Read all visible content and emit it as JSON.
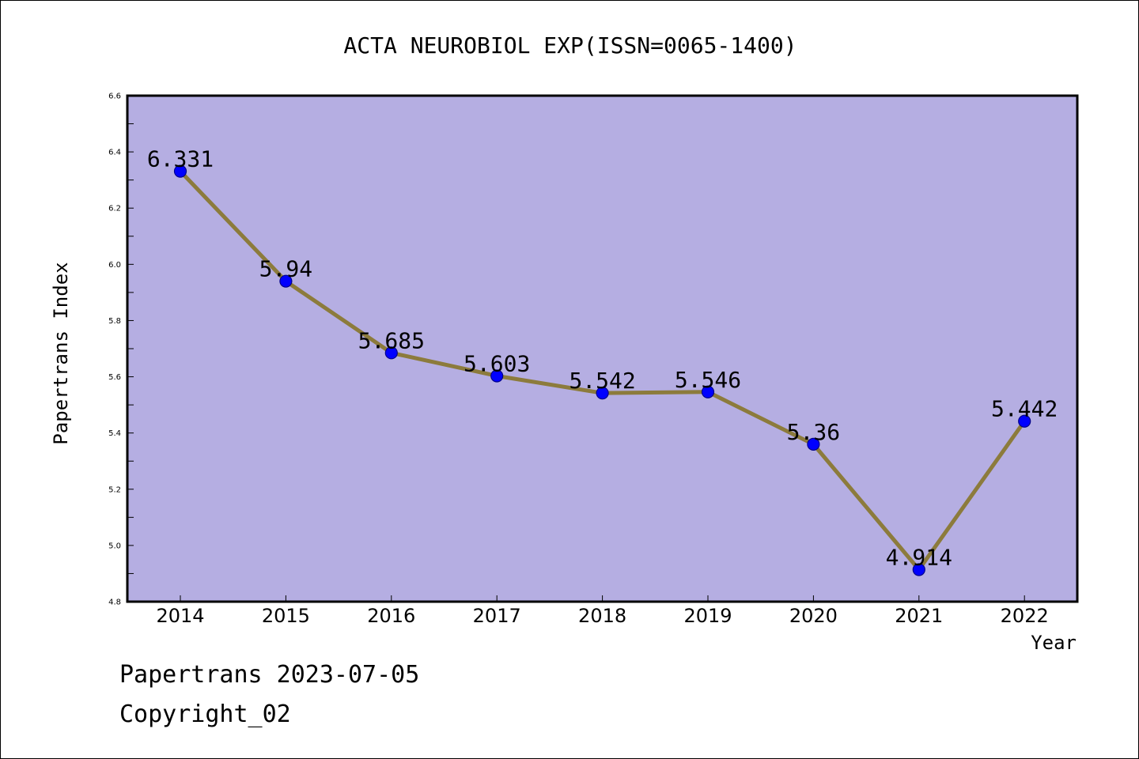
{
  "chart_data": {
    "type": "line",
    "title": "ACTA NEUROBIOL EXP(ISSN=0065-1400)",
    "xlabel": "Year",
    "ylabel": "Papertrans Index",
    "categories": [
      "2014",
      "2015",
      "2016",
      "2017",
      "2018",
      "2019",
      "2020",
      "2021",
      "2022"
    ],
    "values": [
      6.331,
      5.94,
      5.685,
      5.603,
      5.542,
      5.546,
      5.36,
      4.914,
      5.442
    ],
    "data_labels": [
      "6.331",
      "5.94",
      "5.685",
      "5.603",
      "5.542",
      "5.546",
      "5.36",
      "4.914",
      "5.442"
    ],
    "ylim": [
      4.8,
      6.6
    ],
    "yticks": [
      "4.8",
      "5.0",
      "5.2",
      "5.4",
      "5.6",
      "5.8",
      "6.0",
      "6.2",
      "6.4",
      "6.6"
    ],
    "grid": false,
    "colors": {
      "plot_background": "#b5aee2",
      "line": "#8c7b3c",
      "marker": "#0000ff",
      "marker_edge": "#00008b"
    }
  },
  "footer": {
    "date_line": "Papertrans 2023-07-05",
    "copyright_line": "Copyright_02"
  }
}
